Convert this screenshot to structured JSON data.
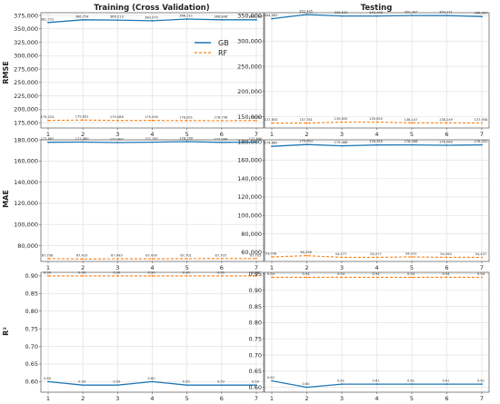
{
  "column_titles": [
    "Training (Cross Validation)",
    "Testing"
  ],
  "row_labels": [
    "RMSE",
    "MAE",
    "R²"
  ],
  "legend": {
    "placement": "upper-right of top-left panel",
    "entries": [
      "GB",
      "RF"
    ]
  },
  "colors": {
    "gb": "#1f77b4",
    "rf": "#ff7f0e",
    "grid": "#dddddd",
    "frame": "#555555"
  },
  "chart_data": [
    {
      "type": "line",
      "row": "RMSE",
      "column": "Training (Cross Validation)",
      "x": [
        1,
        2,
        3,
        4,
        5,
        6,
        7
      ],
      "ylim": [
        165000,
        380000
      ],
      "yticks": [
        175000,
        200000,
        225000,
        250000,
        275000,
        300000,
        325000,
        350000,
        375000
      ],
      "ytick_labels": [
        "175,000",
        "200,000",
        "225,000",
        "250,000",
        "275,000",
        "300,000",
        "325,000",
        "350,000",
        "375,000"
      ],
      "xtick_labels": [
        "1",
        "2",
        "3",
        "4",
        "5",
        "6",
        "7"
      ],
      "grid": true,
      "series": [
        {
          "name": "GB",
          "style": "solid",
          "values": [
            361722,
            366754,
            366213,
            364970,
            368111,
            366848,
            366766
          ],
          "labels": [
            "361,722",
            "366,754",
            "366,213",
            "364,970",
            "368,111",
            "366,848",
            "366,766"
          ]
        },
        {
          "name": "RF",
          "style": "dashed",
          "values": [
            179024,
            179831,
            179086,
            179000,
            178851,
            178796,
            178937
          ],
          "labels": [
            "179,024",
            "179,831",
            "179,086",
            "179,000",
            "178,851",
            "178,796",
            "178,937"
          ]
        }
      ],
      "show_legend": true
    },
    {
      "type": "line",
      "row": "RMSE",
      "column": "Testing",
      "x": [
        1,
        2,
        3,
        4,
        5,
        6,
        7
      ],
      "ylim": [
        128000,
        356000
      ],
      "yticks": [
        150000,
        200000,
        250000,
        300000,
        350000
      ],
      "ytick_labels": [
        "150,000",
        "200,000",
        "250,000",
        "300,000",
        "350,000"
      ],
      "xtick_labels": [
        "1",
        "2",
        "3",
        "4",
        "5",
        "6",
        "7"
      ],
      "grid": true,
      "series": [
        {
          "name": "GB",
          "style": "solid",
          "values": [
            344087,
            352435,
            349531,
            349496,
            350397,
            350271,
            348429
          ],
          "labels": [
            "344,087",
            "352,435",
            "349,531",
            "349,496",
            "350,397",
            "350,271",
            "348,429"
          ]
        },
        {
          "name": "RF",
          "style": "dashed",
          "values": [
            137803,
            137761,
            139655,
            139655,
            138147,
            138249,
            137958
          ],
          "labels": [
            "137,803",
            "137,761",
            "139,655",
            "139,655",
            "138,147",
            "138,249",
            "137,958"
          ]
        }
      ]
    },
    {
      "type": "line",
      "row": "MAE",
      "column": "Training (Cross Validation)",
      "x": [
        1,
        2,
        3,
        4,
        5,
        6,
        7
      ],
      "ylim": [
        65000,
        180000
      ],
      "yticks": [
        80000,
        100000,
        120000,
        140000,
        160000,
        180000
      ],
      "ytick_labels": [
        "80,000",
        "100,000",
        "120,000",
        "140,000",
        "160,000",
        "180,000"
      ],
      "xtick_labels": [
        "1",
        "2",
        "3",
        "4",
        "5",
        "6",
        "7"
      ],
      "grid": true,
      "series": [
        {
          "name": "GB",
          "style": "solid",
          "values": [
            177667,
            177860,
            177407,
            177767,
            178299,
            177566,
            177840
          ],
          "labels": [
            "177,667",
            "177,860",
            "177,407",
            "177,767",
            "178,299",
            "177,566",
            "177,840"
          ]
        },
        {
          "name": "RF",
          "style": "dashed",
          "values": [
            67708,
            67410,
            67499,
            67499,
            67701,
            67705,
            67705
          ],
          "labels": [
            "67,708",
            "67,410",
            "67,499",
            "67,499",
            "67,701",
            "67,705",
            "67,705"
          ]
        }
      ]
    },
    {
      "type": "line",
      "row": "MAE",
      "column": "Testing",
      "x": [
        1,
        2,
        3,
        4,
        5,
        6,
        7
      ],
      "ylim": [
        50000,
        182000
      ],
      "yticks": [
        60000,
        80000,
        100000,
        120000,
        140000,
        160000,
        180000
      ],
      "ytick_labels": [
        "60,000",
        "80,000",
        "100,000",
        "120,000",
        "140,000",
        "160,000",
        "180,000"
      ],
      "xtick_labels": [
        "1",
        "2",
        "3",
        "4",
        "5",
        "6",
        "7"
      ],
      "grid": true,
      "series": [
        {
          "name": "GB",
          "style": "solid",
          "values": [
            174882,
            176863,
            175466,
            176355,
            176498,
            176083,
            176522
          ],
          "labels": [
            "174,882",
            "176,863",
            "175,466",
            "176,355",
            "176,498",
            "176,083",
            "176,522"
          ]
        },
        {
          "name": "RF",
          "style": "dashed",
          "values": [
            54958,
            56258,
            54577,
            54577,
            54931,
            54563,
            54437
          ],
          "labels": [
            "54,958",
            "56,258",
            "54,577",
            "54,577",
            "54,931",
            "54,563",
            "54,437"
          ]
        }
      ]
    },
    {
      "type": "line",
      "row": "R²",
      "column": "Training (Cross Validation)",
      "x": [
        1,
        2,
        3,
        4,
        5,
        6,
        7
      ],
      "ylim": [
        0.57,
        0.91
      ],
      "yticks": [
        0.6,
        0.65,
        0.7,
        0.75,
        0.8,
        0.85,
        0.9
      ],
      "ytick_labels": [
        "0.60",
        "0.65",
        "0.70",
        "0.75",
        "0.80",
        "0.85",
        "0.90"
      ],
      "xtick_labels": [
        "1",
        "2",
        "3",
        "4",
        "5",
        "6",
        "7"
      ],
      "grid": true,
      "series": [
        {
          "name": "GB",
          "style": "solid",
          "values": [
            0.6,
            0.59,
            0.59,
            0.6,
            0.59,
            0.59,
            0.59
          ],
          "labels": [
            "0.60",
            "0.59",
            "0.59",
            "0.60",
            "0.59",
            "0.59",
            "0.59"
          ]
        },
        {
          "name": "RF",
          "style": "dashed",
          "values": [
            0.9,
            0.9,
            0.9,
            0.9,
            0.9,
            0.9,
            0.9
          ],
          "labels": [
            "0.90",
            "0.90",
            "0.90",
            "0.90",
            "0.90",
            "0.90",
            "0.90"
          ]
        }
      ]
    },
    {
      "type": "line",
      "row": "R²",
      "column": "Testing",
      "x": [
        1,
        2,
        3,
        4,
        5,
        6,
        7
      ],
      "ylim": [
        0.585,
        0.955
      ],
      "yticks": [
        0.6,
        0.65,
        0.7,
        0.75,
        0.8,
        0.85,
        0.9,
        0.95
      ],
      "ytick_labels": [
        "0.60",
        "0.65",
        "0.70",
        "0.75",
        "0.80",
        "0.85",
        "0.90",
        "0.95"
      ],
      "xtick_labels": [
        "1",
        "2",
        "3",
        "4",
        "5",
        "6",
        "7"
      ],
      "grid": true,
      "series": [
        {
          "name": "GB",
          "style": "solid",
          "values": [
            0.62,
            0.6,
            0.61,
            0.61,
            0.61,
            0.61,
            0.61
          ],
          "labels": [
            "0.62",
            "0.60",
            "0.61",
            "0.61",
            "0.61",
            "0.61",
            "0.61"
          ]
        },
        {
          "name": "RF",
          "style": "dashed",
          "values": [
            0.94,
            0.94,
            0.94,
            0.94,
            0.94,
            0.94,
            0.94
          ],
          "labels": [
            "0.94",
            "0.94",
            "0.94",
            "0.94",
            "0.94",
            "0.94",
            "0.94"
          ]
        }
      ]
    }
  ]
}
